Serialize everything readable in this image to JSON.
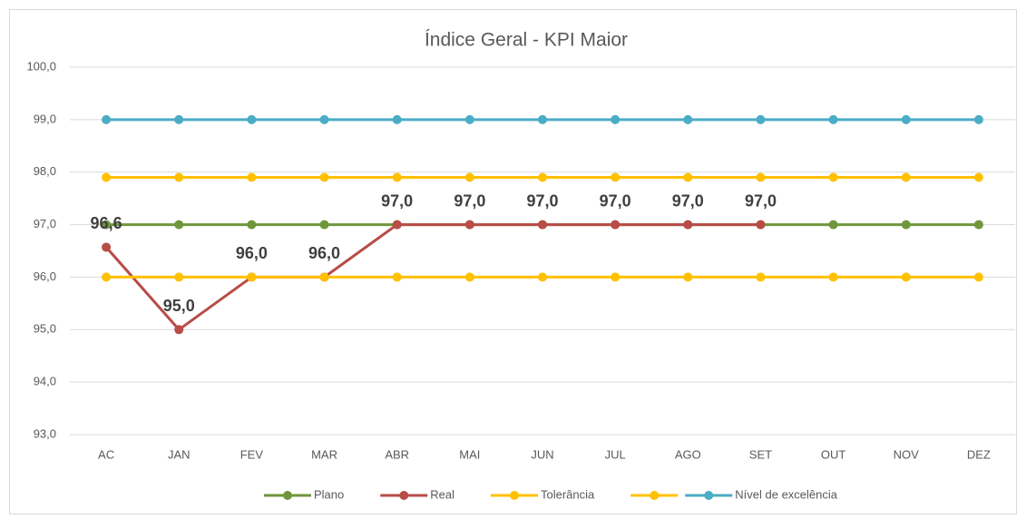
{
  "chart_data": {
    "type": "line",
    "title": "Índice Geral - KPI Maior",
    "categories": [
      "AC",
      "JAN",
      "FEV",
      "MAR",
      "ABR",
      "MAI",
      "JUN",
      "JUL",
      "AGO",
      "SET",
      "OUT",
      "NOV",
      "DEZ"
    ],
    "series": [
      {
        "name": "Plano",
        "color": "#70963c",
        "values": [
          97,
          97,
          97,
          97,
          97,
          97,
          97,
          97,
          97,
          97,
          97,
          97,
          97
        ]
      },
      {
        "name": "Real",
        "color": "#b84c47",
        "values": [
          96.57,
          95,
          96,
          96,
          97,
          97,
          97,
          97,
          97,
          97,
          null,
          null,
          null
        ],
        "value_labels": [
          "96,6",
          "95,0",
          "96,0",
          "96,0",
          "97,0",
          "97,0",
          "97,0",
          "97,0",
          "97,0",
          "97,0",
          null,
          null,
          null
        ]
      },
      {
        "name": "Tolerância",
        "color": "#ffc000",
        "values": [
          97.9,
          97.9,
          97.9,
          97.9,
          97.9,
          97.9,
          97.9,
          97.9,
          97.9,
          97.9,
          97.9,
          97.9,
          97.9
        ]
      },
      {
        "color": "#ffc000",
        "values": [
          96,
          96,
          96,
          96,
          96,
          96,
          96,
          96,
          96,
          96,
          96,
          96,
          96
        ]
      },
      {
        "name": "Nível de excelência",
        "color": "#4bacc6",
        "values": [
          99,
          99,
          99,
          99,
          99,
          99,
          99,
          99,
          99,
          99,
          99,
          99,
          99
        ]
      }
    ],
    "ylim": [
      93,
      100
    ],
    "yticks": [
      {
        "value": 93,
        "label": "93,0"
      },
      {
        "value": 94,
        "label": "94,0"
      },
      {
        "value": 95,
        "label": "95,0"
      },
      {
        "value": 96,
        "label": "96,0"
      },
      {
        "value": 97,
        "label": "97,0"
      },
      {
        "value": 98,
        "label": "98,0"
      },
      {
        "value": 99,
        "label": "99,0"
      },
      {
        "value": 100,
        "label": "100,0"
      }
    ],
    "grid": true,
    "legend": "bottom"
  }
}
